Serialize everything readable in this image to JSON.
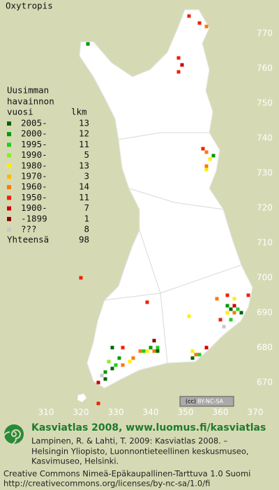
{
  "title": "Oxytropis",
  "legend": {
    "heading": [
      "Uusimman",
      "havainnon",
      "vuosi"
    ],
    "count_heading": "lkm",
    "rows": [
      {
        "label": "2005-",
        "count": 13,
        "color": "#006400"
      },
      {
        "label": "2000-",
        "count": 12,
        "color": "#009a00"
      },
      {
        "label": "1995-",
        "count": 11,
        "color": "#22cc22"
      },
      {
        "label": "1990-",
        "count": 5,
        "color": "#88ee22"
      },
      {
        "label": "1980-",
        "count": 13,
        "color": "#ffee00"
      },
      {
        "label": "1970-",
        "count": 3,
        "color": "#ffbb00"
      },
      {
        "label": "1960-",
        "count": 14,
        "color": "#ff7700"
      },
      {
        "label": "1950-",
        "count": 11,
        "color": "#ee2200"
      },
      {
        "label": "1900-",
        "count": 7,
        "color": "#cc0000"
      },
      {
        "label": "-1899",
        "count": 1,
        "color": "#880000"
      },
      {
        "label": "???",
        "count": 8,
        "color": "#c8c8c8"
      }
    ],
    "total_label": "Yhteensä",
    "total": 98
  },
  "map": {
    "xticks": [
      310,
      320,
      330,
      340,
      350,
      360,
      370
    ],
    "yticks": [
      670,
      680,
      690,
      700,
      710,
      720,
      730,
      740,
      750,
      760,
      770
    ],
    "points": [
      {
        "x": 351,
        "y": 775,
        "period": 7
      },
      {
        "x": 354,
        "y": 773,
        "period": 7
      },
      {
        "x": 356,
        "y": 772,
        "period": 6
      },
      {
        "x": 322,
        "y": 767,
        "period": 1
      },
      {
        "x": 348,
        "y": 763,
        "period": 7
      },
      {
        "x": 349,
        "y": 761,
        "period": 8
      },
      {
        "x": 348,
        "y": 759,
        "period": 7
      },
      {
        "x": 355,
        "y": 737,
        "period": 7
      },
      {
        "x": 356,
        "y": 736,
        "period": 6
      },
      {
        "x": 358,
        "y": 735,
        "period": 1
      },
      {
        "x": 357,
        "y": 734,
        "period": 4
      },
      {
        "x": 356,
        "y": 732,
        "period": 6
      },
      {
        "x": 356,
        "y": 731,
        "period": 4
      },
      {
        "x": 320,
        "y": 700,
        "period": 7
      },
      {
        "x": 339,
        "y": 693,
        "period": 7
      },
      {
        "x": 351,
        "y": 689,
        "period": 4
      },
      {
        "x": 368,
        "y": 695,
        "period": 7
      },
      {
        "x": 359,
        "y": 694,
        "period": 6
      },
      {
        "x": 362,
        "y": 695,
        "period": 7
      },
      {
        "x": 364,
        "y": 694,
        "period": 4
      },
      {
        "x": 362,
        "y": 692,
        "period": 1
      },
      {
        "x": 363,
        "y": 691,
        "period": 0
      },
      {
        "x": 364,
        "y": 692,
        "period": 8
      },
      {
        "x": 365,
        "y": 691,
        "period": 2
      },
      {
        "x": 366,
        "y": 690,
        "period": 0
      },
      {
        "x": 364,
        "y": 690,
        "period": 6
      },
      {
        "x": 362,
        "y": 690,
        "period": 4
      },
      {
        "x": 363,
        "y": 688,
        "period": 2
      },
      {
        "x": 361,
        "y": 686,
        "period": 10
      },
      {
        "x": 360,
        "y": 688,
        "period": 7
      },
      {
        "x": 341,
        "y": 682,
        "period": 9
      },
      {
        "x": 356,
        "y": 680,
        "period": 8
      },
      {
        "x": 338,
        "y": 679,
        "period": 2
      },
      {
        "x": 339,
        "y": 679,
        "period": 4
      },
      {
        "x": 340,
        "y": 680,
        "period": 1
      },
      {
        "x": 341,
        "y": 679,
        "period": 6
      },
      {
        "x": 342,
        "y": 679,
        "period": 0
      },
      {
        "x": 342,
        "y": 680,
        "period": 2
      },
      {
        "x": 337,
        "y": 679,
        "period": 6
      },
      {
        "x": 352,
        "y": 679,
        "period": 4
      },
      {
        "x": 353,
        "y": 678,
        "period": 6
      },
      {
        "x": 352,
        "y": 677,
        "period": 0
      },
      {
        "x": 354,
        "y": 678,
        "period": 2
      },
      {
        "x": 329,
        "y": 680,
        "period": 0
      },
      {
        "x": 332,
        "y": 680,
        "period": 7
      },
      {
        "x": 331,
        "y": 677,
        "period": 1
      },
      {
        "x": 330,
        "y": 675,
        "period": 2
      },
      {
        "x": 332,
        "y": 675,
        "period": 6
      },
      {
        "x": 328,
        "y": 676,
        "period": 3
      },
      {
        "x": 329,
        "y": 674,
        "period": 0
      },
      {
        "x": 327,
        "y": 673,
        "period": 1
      },
      {
        "x": 326,
        "y": 672,
        "period": 10
      },
      {
        "x": 327,
        "y": 671,
        "period": 0
      },
      {
        "x": 334,
        "y": 676,
        "period": 4
      },
      {
        "x": 335,
        "y": 677,
        "period": 6
      },
      {
        "x": 325,
        "y": 670,
        "period": 8
      },
      {
        "x": 325,
        "y": 664,
        "period": 7
      }
    ]
  },
  "badge": {
    "cc": "(cc)",
    "text": "BY-NC-SA"
  },
  "footer": {
    "heading": "Kasviatlas 2008, www.luomus.fi/kasviatlas",
    "citation": [
      "Lampinen, R. & Lahti, T. 2009: Kasviatlas 2008. –",
      "Helsingin Yliopisto, Luonnontieteellinen keskusmuseo,",
      "Kasvimuseo, Helsinki."
    ],
    "license": [
      "Creative Commons Nimeä-Epäkaupallinen-Tarttuva 1.0 Suomi",
      "http://creativecommons.org/licenses/by-nc-sa/1.0/fi"
    ]
  }
}
